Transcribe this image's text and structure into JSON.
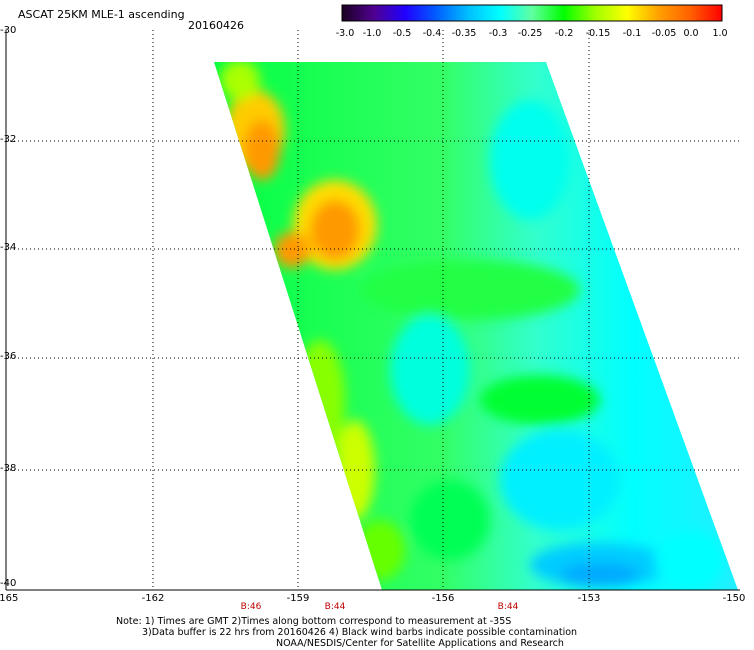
{
  "header": {
    "title": "ASCAT 25KM MLE-1 ascending",
    "date": "20160426"
  },
  "colorbar": {
    "labels": [
      "-3.0",
      "-1.0",
      "-0.5",
      "-0.4",
      "-0.35",
      "-0.3",
      "-0.25",
      "-0.2",
      "-0.15",
      "-0.1",
      "-0.05",
      "0.0",
      "1.0"
    ],
    "colors": [
      "#1a0020",
      "#500090",
      "#2000ff",
      "#0060ff",
      "#00c0ff",
      "#00ffff",
      "#60ffa0",
      "#00ff00",
      "#a0ff00",
      "#ffff00",
      "#ffa000",
      "#ff6000",
      "#ff0000"
    ]
  },
  "axes": {
    "lat_labels": [
      "-30",
      "-32",
      "-34",
      "-36",
      "-38",
      "-40"
    ],
    "lon_labels": [
      "-165",
      "-162",
      "-159",
      "-156",
      "-153",
      "-150"
    ]
  },
  "times": [
    "B:46",
    "B:44",
    "B:44"
  ],
  "notes": {
    "line1": "Note: 1) Times are GMT 2)Times along bottom correspond to measurement at -35S",
    "line2": "3)Data buffer is 22 hrs from 20160426 4) Black wind barbs indicate possible contamination",
    "line3": "NOAA/NESDIS/Center for Satellite Applications and Research"
  }
}
